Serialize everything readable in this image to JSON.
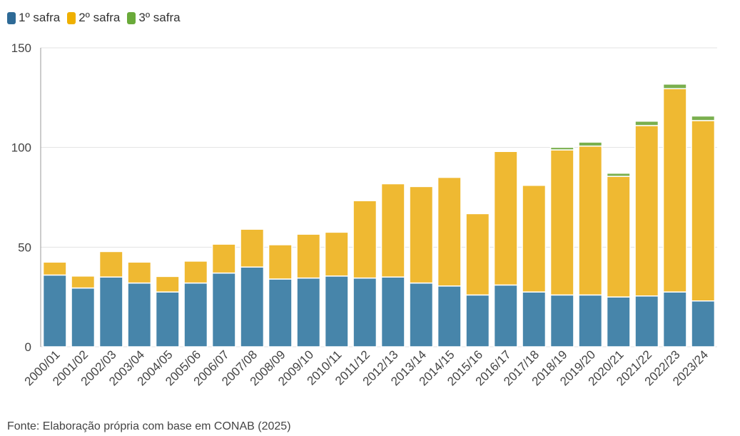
{
  "chart_data": {
    "type": "bar",
    "stacked": true,
    "categories": [
      "2000/01",
      "2001/02",
      "2002/03",
      "2003/04",
      "2004/05",
      "2005/06",
      "2006/07",
      "2007/08",
      "2008/09",
      "2009/10",
      "2010/11",
      "2011/12",
      "2012/13",
      "2013/14",
      "2014/15",
      "2015/16",
      "2016/17",
      "2017/18",
      "2018/19",
      "2019/20",
      "2020/21",
      "2021/22",
      "2022/23",
      "2023/24"
    ],
    "series": [
      {
        "name": "1º safra",
        "color": "#4785aa",
        "values": [
          36,
          29.5,
          35,
          32,
          27.5,
          32,
          37,
          40,
          34,
          34.5,
          35.5,
          34.5,
          35,
          32,
          30.5,
          26,
          31,
          27.5,
          26,
          26,
          25,
          25.5,
          27.5,
          23
        ]
      },
      {
        "name": "2º safra",
        "color": "#efb932",
        "values": [
          6.5,
          6,
          12.8,
          10.5,
          7.8,
          11,
          14.5,
          19,
          17.2,
          22,
          22,
          38.8,
          46.8,
          48.4,
          54.5,
          40.8,
          67,
          53.5,
          72.8,
          74.7,
          60.5,
          85.5,
          102,
          90.5
        ]
      },
      {
        "name": "3º safra",
        "color": "#7aaf4e",
        "values": [
          0,
          0,
          0,
          0,
          0,
          0,
          0,
          0,
          0,
          0,
          0,
          0,
          0,
          0,
          0,
          0,
          0,
          0,
          1.3,
          2,
          1.6,
          2.2,
          2.3,
          2.3
        ]
      }
    ],
    "ylim": [
      0,
      150
    ],
    "yticks": [
      0,
      50,
      100,
      150
    ],
    "grid": true,
    "legend_position": "top-left",
    "xlabel": "",
    "ylabel": ""
  },
  "source": "Fonte: Elaboração própria com base em CONAB (2025)"
}
